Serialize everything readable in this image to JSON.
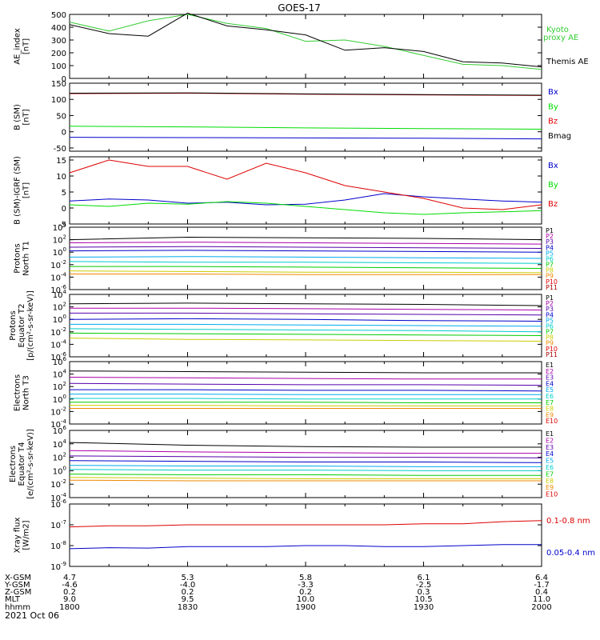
{
  "title": "GOES-17",
  "date_label": "2021 Oct 06",
  "colors": {
    "black": "#000000",
    "blue": "#0000cc",
    "green": "#00dd00",
    "red": "#dd0000",
    "kyoto": "#33cc33"
  },
  "chart_data": [
    {
      "type": "line",
      "panel": "ae",
      "ylabel": [
        "AE_index",
        "[nT]"
      ],
      "ylim": [
        0,
        500
      ],
      "yticks": [
        "0",
        "100",
        "200",
        "300",
        "400",
        "500"
      ],
      "x": [
        "18:00",
        "18:10",
        "18:20",
        "18:30",
        "18:40",
        "18:50",
        "19:00",
        "19:10",
        "19:20",
        "19:30",
        "19:40",
        "19:50",
        "20:00"
      ],
      "series": [
        {
          "name": "Kyoto proxy AE",
          "color": "#33cc33",
          "values": [
            440,
            370,
            450,
            500,
            430,
            390,
            290,
            300,
            250,
            180,
            110,
            100,
            70
          ]
        },
        {
          "name": "Themis AE",
          "color": "#000000",
          "values": [
            420,
            350,
            330,
            510,
            410,
            380,
            340,
            220,
            240,
            210,
            130,
            120,
            90
          ]
        }
      ]
    },
    {
      "type": "line",
      "panel": "bsm",
      "ylabel": [
        "B (SM)",
        "[nT]"
      ],
      "ylim": [
        -60,
        150
      ],
      "yticks": [
        "-50",
        "0",
        "50",
        "100",
        "150"
      ],
      "x": [
        "18:00",
        "18:30",
        "19:00",
        "19:30",
        "20:00"
      ],
      "series": [
        {
          "name": "Bx",
          "color": "#0000cc",
          "values": [
            -17,
            -18,
            -19,
            -20,
            -22
          ]
        },
        {
          "name": "By",
          "color": "#00dd00",
          "values": [
            17,
            15,
            12,
            10,
            8
          ]
        },
        {
          "name": "Bz",
          "color": "#dd0000",
          "values": [
            118,
            119,
            116,
            114,
            112
          ]
        },
        {
          "name": "Bmag",
          "color": "#000000",
          "values": [
            119,
            120,
            117,
            115,
            113
          ]
        }
      ]
    },
    {
      "type": "line",
      "panel": "bigrf",
      "ylabel": [
        "B (SM)-IGRF (SM)",
        "[nT]"
      ],
      "ylim": [
        -5,
        16
      ],
      "yticks": [
        "-5",
        "0",
        "5",
        "10",
        "15"
      ],
      "x": [
        "18:00",
        "18:10",
        "18:20",
        "18:30",
        "18:40",
        "18:50",
        "19:00",
        "19:10",
        "19:20",
        "19:30",
        "19:40",
        "19:50",
        "20:00"
      ],
      "series": [
        {
          "name": "Bx",
          "color": "#0000cc",
          "values": [
            2.2,
            2.8,
            2.5,
            1.5,
            1.8,
            1.0,
            1.2,
            2.5,
            4.5,
            3.5,
            2.8,
            2.2,
            1.8
          ]
        },
        {
          "name": "By",
          "color": "#00dd00",
          "values": [
            1.0,
            0.5,
            1.5,
            1.2,
            2.0,
            1.5,
            0.5,
            -0.5,
            -1.5,
            -2.0,
            -1.5,
            -1.2,
            -0.8
          ]
        },
        {
          "name": "Bz",
          "color": "#dd0000",
          "values": [
            11,
            15,
            13,
            13,
            9,
            14,
            11,
            7,
            5,
            3,
            0,
            -0.5,
            1
          ]
        }
      ]
    },
    {
      "type": "line",
      "panel": "pn",
      "ylabel": [
        "Protons",
        "North T1"
      ],
      "log": true,
      "ylim": [
        -6,
        4
      ],
      "yticks": [
        "10^-6",
        "10^-4",
        "10^-2",
        "10^0",
        "10^2",
        "10^4"
      ],
      "x": [
        "18:00",
        "18:30",
        "19:00",
        "19:30",
        "20:00"
      ],
      "series": [
        {
          "name": "P1",
          "color": "#000000",
          "values": [
            2,
            2.4,
            2.3,
            2.2,
            2.0
          ]
        },
        {
          "name": "P2",
          "color": "#aa00aa",
          "values": [
            1.5,
            1.6,
            1.5,
            1.4,
            1.3
          ]
        },
        {
          "name": "P3",
          "color": "#5500aa",
          "values": [
            0.8,
            0.9,
            0.8,
            0.7,
            0.6
          ]
        },
        {
          "name": "P4",
          "color": "#0000cc",
          "values": [
            0.2,
            0.3,
            0.2,
            0.1,
            0.0
          ]
        },
        {
          "name": "P5",
          "color": "#00aaee",
          "values": [
            -0.8,
            -0.7,
            -0.8,
            -0.9,
            -1.0
          ]
        },
        {
          "name": "P6",
          "color": "#00cccc",
          "values": [
            -1.5,
            -1.6,
            -1.6,
            -1.7,
            -1.8
          ]
        },
        {
          "name": "P7",
          "color": "#00cc00",
          "values": [
            -2.3,
            -2.3,
            -2.4,
            -2.5,
            -2.6
          ]
        },
        {
          "name": "P8",
          "color": "#cccc00",
          "values": [
            -3.0,
            -3.1,
            -3.2,
            -3.2,
            -3.3
          ]
        },
        {
          "name": "P9",
          "color": "#ee8800",
          "values": [
            -3.5,
            -3.5,
            -3.6,
            -3.6,
            -3.6
          ]
        }
      ]
    },
    {
      "type": "line",
      "panel": "pe",
      "ylabel": [
        "Protons",
        "Equator T2",
        "[p/(cm²-s-sr-keV)]"
      ],
      "log": true,
      "ylim": [
        -6,
        4
      ],
      "yticks": [
        "10^-6",
        "10^-4",
        "10^-2",
        "10^0",
        "10^2",
        "10^4"
      ],
      "x": [
        "18:00",
        "18:30",
        "19:00",
        "19:30",
        "20:00"
      ],
      "series": [
        {
          "name": "P1",
          "color": "#000000",
          "values": [
            2.5,
            2.6,
            2.5,
            2.4,
            2.2
          ]
        },
        {
          "name": "P2",
          "color": "#aa00aa",
          "values": [
            1.8,
            1.8,
            1.7,
            1.6,
            1.5
          ]
        },
        {
          "name": "P3",
          "color": "#5500aa",
          "values": [
            1.0,
            1.0,
            0.9,
            0.8,
            0.7
          ]
        },
        {
          "name": "P4",
          "color": "#0000cc",
          "values": [
            0.0,
            0.1,
            0.0,
            -0.2,
            -0.3
          ]
        },
        {
          "name": "P5",
          "color": "#00aaee",
          "values": [
            -0.8,
            -0.8,
            -0.9,
            -1.0,
            -1.1
          ]
        },
        {
          "name": "P6",
          "color": "#00cccc",
          "values": [
            -1.5,
            -1.6,
            -1.7,
            -1.8,
            -2.0
          ]
        },
        {
          "name": "P7",
          "color": "#00cc00",
          "values": [
            -2.2,
            -2.3,
            -2.4,
            -2.5,
            -2.6
          ]
        },
        {
          "name": "P8",
          "color": "#cccc00",
          "values": [
            -3.0,
            -3.2,
            -3.3,
            -3.4,
            -3.5
          ]
        }
      ]
    },
    {
      "type": "line",
      "panel": "en",
      "ylabel": [
        "Electrons",
        "North T3"
      ],
      "log": true,
      "ylim": [
        -4,
        6
      ],
      "yticks": [
        "10^-4",
        "10^-2",
        "10^0",
        "10^2",
        "10^4",
        "10^6"
      ],
      "x": [
        "18:00",
        "18:30",
        "19:00",
        "19:30",
        "20:00"
      ],
      "series": [
        {
          "name": "E1",
          "color": "#000000",
          "values": [
            4.5,
            4.4,
            4.3,
            4.2,
            4.2
          ]
        },
        {
          "name": "E2",
          "color": "#aa00aa",
          "values": [
            3.5,
            3.4,
            3.3,
            3.2,
            3.2
          ]
        },
        {
          "name": "E3",
          "color": "#5500aa",
          "values": [
            2.5,
            2.4,
            2.3,
            2.3,
            2.2
          ]
        },
        {
          "name": "E4",
          "color": "#0000cc",
          "values": [
            1.5,
            1.5,
            1.4,
            1.4,
            1.3
          ]
        },
        {
          "name": "E5",
          "color": "#00aaee",
          "values": [
            0.8,
            0.8,
            0.7,
            0.7,
            0.7
          ]
        },
        {
          "name": "E6",
          "color": "#00cccc",
          "values": [
            0.1,
            0.1,
            0.0,
            0.0,
            0.0
          ]
        },
        {
          "name": "E7",
          "color": "#00cc00",
          "values": [
            -0.5,
            -0.5,
            -0.5,
            -0.6,
            -0.6
          ]
        },
        {
          "name": "E8",
          "color": "#cccc00",
          "values": [
            -1.0,
            -1.0,
            -1.1,
            -1.1,
            -1.1
          ]
        },
        {
          "name": "E9",
          "color": "#ee8800",
          "values": [
            -1.5,
            -1.5,
            -1.5,
            -1.5,
            -1.5
          ]
        }
      ]
    },
    {
      "type": "line",
      "panel": "ee",
      "ylabel": [
        "Electrons",
        "Equator T4",
        "[e/(cm²-s-sr-keV)]"
      ],
      "log": true,
      "ylim": [
        -4,
        6
      ],
      "yticks": [
        "10^-4",
        "10^-2",
        "10^0",
        "10^2",
        "10^4",
        "10^6"
      ],
      "x": [
        "18:00",
        "18:30",
        "19:00",
        "19:30",
        "20:00"
      ],
      "series": [
        {
          "name": "E1",
          "color": "#000000",
          "values": [
            4.2,
            3.8,
            3.6,
            3.5,
            3.5
          ]
        },
        {
          "name": "E2",
          "color": "#aa00aa",
          "values": [
            3.0,
            2.8,
            2.7,
            2.6,
            2.6
          ]
        },
        {
          "name": "E3",
          "color": "#5500aa",
          "values": [
            2.2,
            2.1,
            2.0,
            2.0,
            1.9
          ]
        },
        {
          "name": "E4",
          "color": "#0000cc",
          "values": [
            1.5,
            1.4,
            1.3,
            1.3,
            1.2
          ]
        },
        {
          "name": "E5",
          "color": "#00aaee",
          "values": [
            0.8,
            0.7,
            0.7,
            0.6,
            0.6
          ]
        },
        {
          "name": "E6",
          "color": "#00cccc",
          "values": [
            0.2,
            0.1,
            0.1,
            0.0,
            0.0
          ]
        },
        {
          "name": "E7",
          "color": "#00cc00",
          "values": [
            -0.5,
            -0.6,
            -0.6,
            -0.7,
            -0.7
          ]
        },
        {
          "name": "E8",
          "color": "#cccc00",
          "values": [
            -1.0,
            -1.1,
            -1.2,
            -1.2,
            -1.2
          ]
        },
        {
          "name": "E9",
          "color": "#ee8800",
          "values": [
            -1.4,
            -1.5,
            -1.5,
            -1.5,
            -1.5
          ]
        }
      ]
    },
    {
      "type": "line",
      "panel": "xray",
      "ylabel": [
        "Xray flux",
        "[W/m2]"
      ],
      "log": true,
      "ylim": [
        -9,
        -6
      ],
      "yticks": [
        "10^-9",
        "10^-8",
        "10^-7",
        "10^-6"
      ],
      "x": [
        "18:00",
        "18:10",
        "18:20",
        "18:30",
        "18:40",
        "18:50",
        "19:00",
        "19:10",
        "19:20",
        "19:30",
        "19:40",
        "19:50",
        "20:00"
      ],
      "series": [
        {
          "name": "0.1-0.8 nm",
          "color": "#dd0000",
          "values": [
            -7.1,
            -7.05,
            -7.05,
            -7.0,
            -7.0,
            -7.0,
            -7.0,
            -7.0,
            -7.0,
            -6.95,
            -6.95,
            -6.85,
            -6.8
          ]
        },
        {
          "name": "0.05-0.4 nm",
          "color": "#0000cc",
          "values": [
            -8.15,
            -8.1,
            -8.12,
            -8.05,
            -8.05,
            -8.05,
            -8.0,
            -8.0,
            -8.05,
            -8.05,
            -8.0,
            -7.95,
            -7.95
          ]
        }
      ]
    }
  ],
  "legends": {
    "ae": [
      "Kyoto",
      "proxy AE",
      "Themis AE"
    ],
    "bsm": [
      "Bx",
      "By",
      "Bz",
      "Bmag"
    ],
    "bigrf": [
      "Bx",
      "By",
      "Bz"
    ],
    "pn": [
      "P1",
      "P2",
      "P3",
      "P4",
      "P5",
      "P6",
      "P7",
      "P8",
      "P9",
      "P10",
      "P11"
    ],
    "pe": [
      "P1",
      "P2",
      "P3",
      "P4",
      "P5",
      "P6",
      "P7",
      "P8",
      "P9",
      "P10",
      "P11"
    ],
    "en": [
      "E1",
      "E2",
      "E3",
      "E4",
      "E5",
      "E6",
      "E7",
      "E8",
      "E9",
      "E10"
    ],
    "ee": [
      "E1",
      "E2",
      "E3",
      "E4",
      "E5",
      "E6",
      "E7",
      "E8",
      "E9",
      "E10"
    ],
    "xray": [
      "0.1-0.8 nm",
      "0.05-0.4 nm"
    ]
  },
  "orbit": {
    "labels": [
      "X-GSM",
      "Y-GSM",
      "Z-GSM",
      "MLT",
      "hhmm"
    ],
    "columns": [
      [
        "4.7",
        "-4.6",
        "0.2",
        "9.0",
        "1800"
      ],
      [
        "5.3",
        "-4.0",
        "0.2",
        "9.5",
        "1830"
      ],
      [
        "5.8",
        "-3.3",
        "0.2",
        "10.0",
        "1900"
      ],
      [
        "6.1",
        "-2.5",
        "0.3",
        "10.5",
        "1930"
      ],
      [
        "6.4",
        "-1.7",
        "0.4",
        "11.0",
        "2000"
      ]
    ]
  }
}
